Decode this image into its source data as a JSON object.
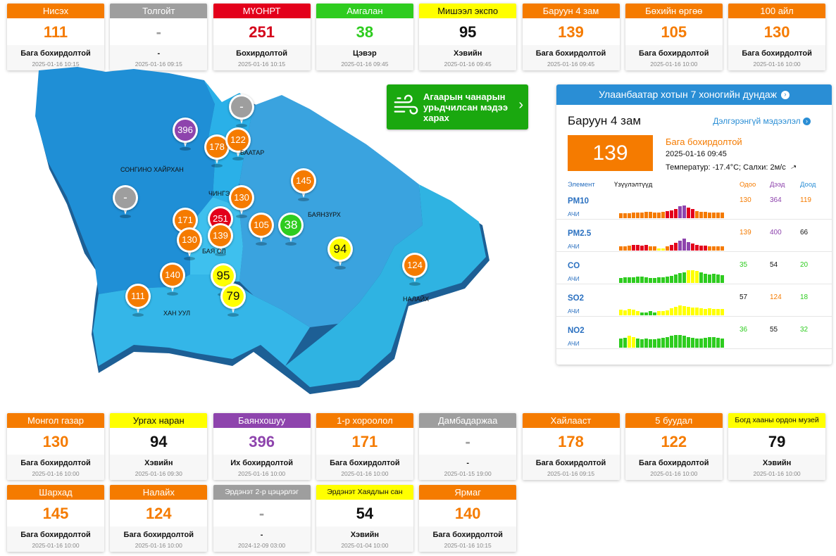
{
  "top_cards": [
    {
      "name": "Нисэх",
      "value": "111",
      "status": "Бага бохирдолтой",
      "time": "2025-01-16 10:15",
      "color": "#f57b00",
      "text_color": "#f57b00"
    },
    {
      "name": "Толгойт",
      "value": "-",
      "status": "-",
      "time": "2025-01-16 09:15",
      "color": "#9e9e9e",
      "text_color": "#9e9e9e"
    },
    {
      "name": "МҮОНРТ",
      "value": "251",
      "status": "Бохирдолтой",
      "time": "2025-01-16 10:15",
      "color": "#e3001b",
      "text_color": "#d4001a"
    },
    {
      "name": "Амгалан",
      "value": "38",
      "status": "Цэвэр",
      "time": "2025-01-16 09:45",
      "color": "#2ecc1f",
      "text_color": "#2ecc1f"
    },
    {
      "name": "Мишээл экспо",
      "value": "95",
      "status": "Хэвийн",
      "time": "2025-01-16 09:45",
      "color": "#ffff00",
      "text_color": "#111111"
    },
    {
      "name": "Баруун 4 зам",
      "value": "139",
      "status": "Бага бохирдолтой",
      "time": "2025-01-16 09:45",
      "color": "#f57b00",
      "text_color": "#f57b00"
    },
    {
      "name": "Бөхийн өргөө",
      "value": "105",
      "status": "Бага бохирдолтой",
      "time": "2025-01-16 10:00",
      "color": "#f57b00",
      "text_color": "#f57b00"
    },
    {
      "name": "100 айл",
      "value": "130",
      "status": "Бага бохирдолтой",
      "time": "2025-01-16 10:00",
      "color": "#f57b00",
      "text_color": "#f57b00"
    }
  ],
  "bottom_cards_row1": [
    {
      "name": "Монгол газар",
      "value": "130",
      "status": "Бага бохирдолтой",
      "time": "2025-01-16 10:00",
      "color": "#f57b00",
      "text_color": "#f57b00"
    },
    {
      "name": "Ургах наран",
      "value": "94",
      "status": "Хэвийн",
      "time": "2025-01-16 09:30",
      "color": "#ffff00",
      "text_color": "#111111"
    },
    {
      "name": "Баянхошуу",
      "value": "396",
      "status": "Их бохирдолтой",
      "time": "2025-01-16 10:00",
      "color": "#8e44ad",
      "text_color": "#8e44ad"
    },
    {
      "name": "1-р хороолол",
      "value": "171",
      "status": "Бага бохирдолтой",
      "time": "2025-01-16 10:00",
      "color": "#f57b00",
      "text_color": "#f57b00"
    },
    {
      "name": "Дамбадаржаа",
      "value": "-",
      "status": "-",
      "time": "2025-01-15 19:00",
      "color": "#9e9e9e",
      "text_color": "#9e9e9e"
    },
    {
      "name": "Хайлааст",
      "value": "178",
      "status": "Бага бохирдолтой",
      "time": "2025-01-16 09:15",
      "color": "#f57b00",
      "text_color": "#f57b00"
    },
    {
      "name": "5 буудал",
      "value": "122",
      "status": "Бага бохирдолтой",
      "time": "2025-01-16 10:00",
      "color": "#f57b00",
      "text_color": "#f57b00"
    },
    {
      "name": "Богд хааны ордон музей",
      "value": "79",
      "status": "Хэвийн",
      "time": "2025-01-16 10:00",
      "color": "#ffff00",
      "text_color": "#111111"
    }
  ],
  "bottom_cards_row2": [
    {
      "name": "Шархад",
      "value": "145",
      "status": "Бага бохирдолтой",
      "time": "2025-01-16 10:00",
      "color": "#f57b00",
      "text_color": "#f57b00"
    },
    {
      "name": "Налайх",
      "value": "124",
      "status": "Бага бохирдолтой",
      "time": "2025-01-16 10:00",
      "color": "#f57b00",
      "text_color": "#f57b00"
    },
    {
      "name": "Эрдэнэт 2-р цэцэрлэг",
      "value": "-",
      "status": "-",
      "time": "2024-12-09 03:00",
      "color": "#9e9e9e",
      "text_color": "#9e9e9e"
    },
    {
      "name": "Эрдэнэт Хаядлын сан",
      "value": "54",
      "status": "Хэвийн",
      "time": "2025-01-04 10:00",
      "color": "#ffff00",
      "text_color": "#111111"
    },
    {
      "name": "Ярмаг",
      "value": "140",
      "status": "Бага бохирдолтой",
      "time": "2025-01-16 10:15",
      "color": "#f57b00",
      "text_color": "#f57b00"
    }
  ],
  "forecast_button": {
    "label": "Агаарын чанарын урьдчилсан мэдээ харах"
  },
  "panel": {
    "header": "Улаанбаатар хотын 7 хоногийн дундаж",
    "station": "Баруун 4 зам",
    "more_link": "Дэлгэрэнгүй мэдээлэл",
    "value": "139",
    "status": "Бага бохирдолтой",
    "time": "2025-01-16 09:45",
    "weather": "Температур: -17.4°C; Салхи: 2м/с",
    "col_element": "Элемент",
    "col_readings": "Үзүүлэлтүүд",
    "col_now": "Одоо",
    "col_max": "Дээд",
    "col_min": "Доод",
    "pollutants": [
      {
        "name": "PM10",
        "unit": "АЧИ",
        "now": "130",
        "max": "364",
        "min": "119",
        "bars": [
          {
            "level": 30,
            "color": "#f57b00"
          },
          {
            "level": 30,
            "color": "#f57b00"
          },
          {
            "level": 30,
            "color": "#f57b00"
          },
          {
            "level": 35,
            "color": "#f57b00"
          },
          {
            "level": 35,
            "color": "#f57b00"
          },
          {
            "level": 35,
            "color": "#f57b00"
          },
          {
            "level": 40,
            "color": "#f57b00"
          },
          {
            "level": 40,
            "color": "#f57b00"
          },
          {
            "level": 35,
            "color": "#f57b00"
          },
          {
            "level": 35,
            "color": "#f57b00"
          },
          {
            "level": 40,
            "color": "#f57b00"
          },
          {
            "level": 45,
            "color": "#e3001b"
          },
          {
            "level": 50,
            "color": "#e3001b"
          },
          {
            "level": 60,
            "color": "#e3001b"
          },
          {
            "level": 75,
            "color": "#8e44ad"
          },
          {
            "level": 80,
            "color": "#8e44ad"
          },
          {
            "level": 70,
            "color": "#e3001b"
          },
          {
            "level": 60,
            "color": "#e3001b"
          },
          {
            "level": 45,
            "color": "#f57b00"
          },
          {
            "level": 40,
            "color": "#f57b00"
          },
          {
            "level": 40,
            "color": "#f57b00"
          },
          {
            "level": 35,
            "color": "#f57b00"
          },
          {
            "level": 35,
            "color": "#f57b00"
          },
          {
            "level": 35,
            "color": "#f57b00"
          },
          {
            "level": 35,
            "color": "#f57b00"
          }
        ]
      },
      {
        "name": "PM2.5",
        "unit": "АЧИ",
        "now": "139",
        "max": "400",
        "min": "66",
        "bars": [
          {
            "level": 25,
            "color": "#f57b00"
          },
          {
            "level": 25,
            "color": "#f57b00"
          },
          {
            "level": 30,
            "color": "#f57b00"
          },
          {
            "level": 35,
            "color": "#e3001b"
          },
          {
            "level": 35,
            "color": "#e3001b"
          },
          {
            "level": 30,
            "color": "#e3001b"
          },
          {
            "level": 35,
            "color": "#e3001b"
          },
          {
            "level": 25,
            "color": "#f57b00"
          },
          {
            "level": 25,
            "color": "#f57b00"
          },
          {
            "level": 15,
            "color": "#ffff00"
          },
          {
            "level": 15,
            "color": "#ffff00"
          },
          {
            "level": 25,
            "color": "#f57b00"
          },
          {
            "level": 35,
            "color": "#e3001b"
          },
          {
            "level": 50,
            "color": "#e3001b"
          },
          {
            "level": 65,
            "color": "#8e44ad"
          },
          {
            "level": 75,
            "color": "#8e44ad"
          },
          {
            "level": 55,
            "color": "#8e44ad"
          },
          {
            "level": 45,
            "color": "#e3001b"
          },
          {
            "level": 35,
            "color": "#e3001b"
          },
          {
            "level": 30,
            "color": "#e3001b"
          },
          {
            "level": 30,
            "color": "#e3001b"
          },
          {
            "level": 25,
            "color": "#f57b00"
          },
          {
            "level": 25,
            "color": "#f57b00"
          },
          {
            "level": 25,
            "color": "#f57b00"
          },
          {
            "level": 25,
            "color": "#f57b00"
          }
        ]
      },
      {
        "name": "CO",
        "unit": "АЧИ",
        "now": "35",
        "max": "54",
        "min": "20",
        "bars": [
          {
            "level": 30,
            "color": "#2ecc1f"
          },
          {
            "level": 35,
            "color": "#2ecc1f"
          },
          {
            "level": 35,
            "color": "#2ecc1f"
          },
          {
            "level": 35,
            "color": "#2ecc1f"
          },
          {
            "level": 40,
            "color": "#2ecc1f"
          },
          {
            "level": 40,
            "color": "#2ecc1f"
          },
          {
            "level": 35,
            "color": "#2ecc1f"
          },
          {
            "level": 30,
            "color": "#2ecc1f"
          },
          {
            "level": 30,
            "color": "#2ecc1f"
          },
          {
            "level": 35,
            "color": "#2ecc1f"
          },
          {
            "level": 35,
            "color": "#2ecc1f"
          },
          {
            "level": 40,
            "color": "#2ecc1f"
          },
          {
            "level": 45,
            "color": "#2ecc1f"
          },
          {
            "level": 55,
            "color": "#2ecc1f"
          },
          {
            "level": 65,
            "color": "#2ecc1f"
          },
          {
            "level": 70,
            "color": "#2ecc1f"
          },
          {
            "level": 80,
            "color": "#ffff00"
          },
          {
            "level": 80,
            "color": "#ffff00"
          },
          {
            "level": 75,
            "color": "#ffff00"
          },
          {
            "level": 70,
            "color": "#2ecc1f"
          },
          {
            "level": 60,
            "color": "#2ecc1f"
          },
          {
            "level": 55,
            "color": "#2ecc1f"
          },
          {
            "level": 60,
            "color": "#2ecc1f"
          },
          {
            "level": 55,
            "color": "#2ecc1f"
          },
          {
            "level": 50,
            "color": "#2ecc1f"
          }
        ]
      },
      {
        "name": "SO2",
        "unit": "АЧИ",
        "now": "57",
        "max": "124",
        "min": "18",
        "bars": [
          {
            "level": 35,
            "color": "#ffff00"
          },
          {
            "level": 30,
            "color": "#ffff00"
          },
          {
            "level": 40,
            "color": "#ffff00"
          },
          {
            "level": 35,
            "color": "#ffff00"
          },
          {
            "level": 25,
            "color": "#ffff00"
          },
          {
            "level": 20,
            "color": "#2ecc1f"
          },
          {
            "level": 20,
            "color": "#2ecc1f"
          },
          {
            "level": 25,
            "color": "#2ecc1f"
          },
          {
            "level": 20,
            "color": "#2ecc1f"
          },
          {
            "level": 25,
            "color": "#ffff00"
          },
          {
            "level": 25,
            "color": "#ffff00"
          },
          {
            "level": 30,
            "color": "#ffff00"
          },
          {
            "level": 45,
            "color": "#ffff00"
          },
          {
            "level": 55,
            "color": "#ffff00"
          },
          {
            "level": 65,
            "color": "#ffff00"
          },
          {
            "level": 60,
            "color": "#ffff00"
          },
          {
            "level": 55,
            "color": "#ffff00"
          },
          {
            "level": 50,
            "color": "#ffff00"
          },
          {
            "level": 50,
            "color": "#ffff00"
          },
          {
            "level": 45,
            "color": "#ffff00"
          },
          {
            "level": 40,
            "color": "#ffff00"
          },
          {
            "level": 45,
            "color": "#ffff00"
          },
          {
            "level": 40,
            "color": "#ffff00"
          },
          {
            "level": 40,
            "color": "#ffff00"
          },
          {
            "level": 40,
            "color": "#ffff00"
          }
        ]
      },
      {
        "name": "NO2",
        "unit": "АЧИ",
        "now": "36",
        "max": "55",
        "min": "32",
        "bars": [
          {
            "level": 60,
            "color": "#2ecc1f"
          },
          {
            "level": 65,
            "color": "#2ecc1f"
          },
          {
            "level": 75,
            "color": "#ffff00"
          },
          {
            "level": 70,
            "color": "#ffff00"
          },
          {
            "level": 60,
            "color": "#2ecc1f"
          },
          {
            "level": 55,
            "color": "#2ecc1f"
          },
          {
            "level": 60,
            "color": "#2ecc1f"
          },
          {
            "level": 55,
            "color": "#2ecc1f"
          },
          {
            "level": 55,
            "color": "#2ecc1f"
          },
          {
            "level": 60,
            "color": "#2ecc1f"
          },
          {
            "level": 65,
            "color": "#2ecc1f"
          },
          {
            "level": 70,
            "color": "#2ecc1f"
          },
          {
            "level": 75,
            "color": "#2ecc1f"
          },
          {
            "level": 80,
            "color": "#2ecc1f"
          },
          {
            "level": 80,
            "color": "#2ecc1f"
          },
          {
            "level": 75,
            "color": "#2ecc1f"
          },
          {
            "level": 70,
            "color": "#2ecc1f"
          },
          {
            "level": 65,
            "color": "#2ecc1f"
          },
          {
            "level": 60,
            "color": "#2ecc1f"
          },
          {
            "level": 60,
            "color": "#2ecc1f"
          },
          {
            "level": 65,
            "color": "#2ecc1f"
          },
          {
            "level": 70,
            "color": "#2ecc1f"
          },
          {
            "level": 70,
            "color": "#2ecc1f"
          },
          {
            "level": 65,
            "color": "#2ecc1f"
          },
          {
            "level": 60,
            "color": "#2ecc1f"
          }
        ]
      }
    ]
  },
  "map": {
    "labels": {
      "songino": "СОНГИНО ХАЙРХАН",
      "bayanzurkh": "БАЯНЗҮРХ",
      "khan_uul": "ХАН УУЛ",
      "nalaikh": "НАЛАЙХ",
      "chingeltei": "ЧИНГЭ",
      "baatar": "БААТАР",
      "bayangol": "БАЯ    ОЛ"
    },
    "pins": [
      {
        "value": "396",
        "color": "#8e44ad",
        "text_color": "#ffffff"
      },
      {
        "value": "-",
        "color": "#9e9e9e",
        "text_color": "#ffffff"
      },
      {
        "value": "178",
        "color": "#f57b00",
        "text_color": "#ffffff"
      },
      {
        "value": "122",
        "color": "#f57b00",
        "text_color": "#ffffff"
      },
      {
        "value": "-",
        "color": "#9e9e9e",
        "text_color": "#ffffff"
      },
      {
        "value": "130",
        "color": "#f57b00",
        "text_color": "#ffffff"
      },
      {
        "value": "145",
        "color": "#f57b00",
        "text_color": "#ffffff"
      },
      {
        "value": "171",
        "color": "#f57b00",
        "text_color": "#ffffff"
      },
      {
        "value": "251",
        "color": "#e3001b",
        "text_color": "#ffffff"
      },
      {
        "value": "139",
        "color": "#f57b00",
        "text_color": "#ffffff"
      },
      {
        "value": "105",
        "color": "#f57b00",
        "text_color": "#ffffff"
      },
      {
        "value": "38",
        "color": "#2ecc1f",
        "text_color": "#ffffff"
      },
      {
        "value": "130",
        "color": "#f57b00",
        "text_color": "#ffffff"
      },
      {
        "value": "94",
        "color": "#ffff00",
        "text_color": "#111111"
      },
      {
        "value": "124",
        "color": "#f57b00",
        "text_color": "#ffffff"
      },
      {
        "value": "140",
        "color": "#f57b00",
        "text_color": "#ffffff"
      },
      {
        "value": "95",
        "color": "#ffff00",
        "text_color": "#111111"
      },
      {
        "value": "79",
        "color": "#ffff00",
        "text_color": "#111111"
      },
      {
        "value": "111",
        "color": "#f57b00",
        "text_color": "#ffffff"
      }
    ]
  }
}
